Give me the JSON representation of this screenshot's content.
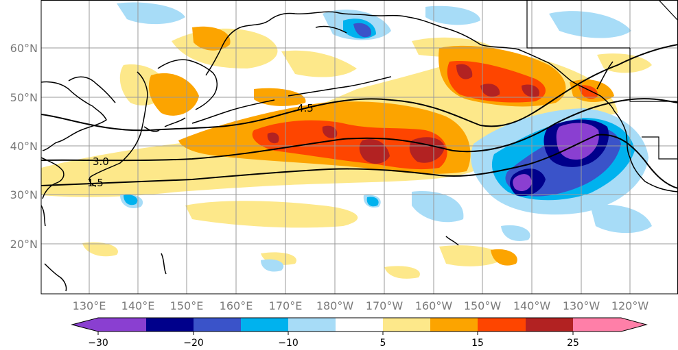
{
  "map": {
    "lon_labels": [
      "130°E",
      "140°E",
      "150°E",
      "160°E",
      "170°E",
      "180°W",
      "170°W",
      "160°W",
      "150°W",
      "140°W",
      "130°W",
      "120°W"
    ],
    "lat_labels": [
      "20°N",
      "30°N",
      "40°N",
      "50°N",
      "60°N"
    ],
    "contour_labels": [
      "4.5",
      "3.0",
      "1.5"
    ],
    "colorbar": {
      "tick_labels": [
        "−30",
        "−20",
        "−10",
        "5",
        "15",
        "25"
      ],
      "colors": [
        "#8a3fd1",
        "#00008b",
        "#3a53c9",
        "#00b2ee",
        "#a7dcf7",
        "#ffffff",
        "#fde88a",
        "#fca400",
        "#fe4500",
        "#b22222",
        "#ff7fa8"
      ]
    },
    "colors": {
      "purple": "#8a3fd1",
      "navy": "#00008b",
      "blue": "#3a53c9",
      "cyan": "#00b2ee",
      "lightblue": "#a7dcf7",
      "yellow": "#fde88a",
      "orange": "#fca400",
      "red": "#fe4500",
      "darkred": "#b22222",
      "pink": "#ff7fa8"
    }
  }
}
